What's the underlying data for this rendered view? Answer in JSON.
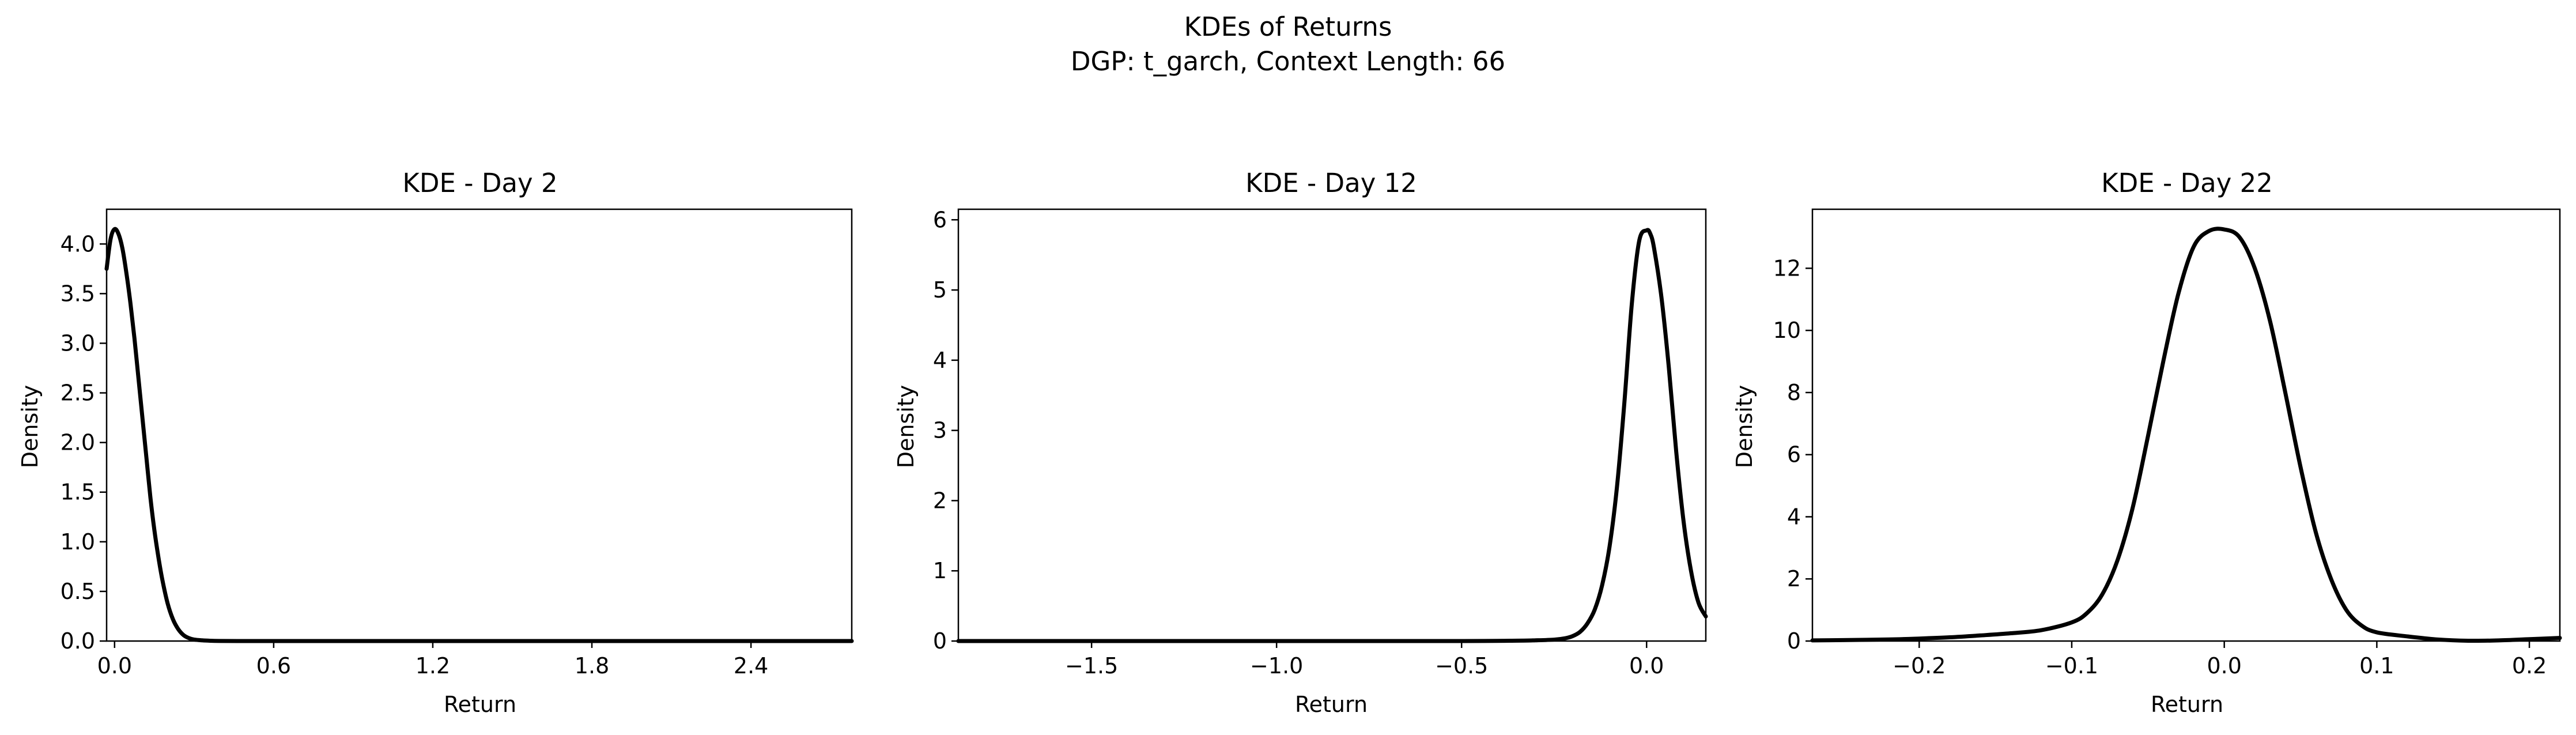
{
  "figure": {
    "title_line1": "KDEs of Returns",
    "title_line2": "DGP: t_garch, Context Length: 66"
  },
  "chart_data": [
    {
      "type": "line",
      "title": "KDE - Day 2",
      "xlabel": "Return",
      "ylabel": "Density",
      "xlim": [
        -0.03,
        2.78
      ],
      "ylim": [
        0,
        4.35
      ],
      "xticks": [
        0.0,
        0.6,
        1.2,
        1.8,
        2.4
      ],
      "xtick_labels": [
        "0.0",
        "0.6",
        "1.2",
        "1.8",
        "2.4"
      ],
      "yticks": [
        0.0,
        0.5,
        1.0,
        1.5,
        2.0,
        2.5,
        3.0,
        3.5,
        4.0
      ],
      "ytick_labels": [
        "0.0",
        "0.5",
        "1.0",
        "1.5",
        "2.0",
        "2.5",
        "3.0",
        "3.5",
        "4.0"
      ],
      "series": [
        {
          "color": "#000000",
          "x": [
            -0.03,
            -0.015,
            0.0,
            0.015,
            0.03,
            0.045,
            0.06,
            0.075,
            0.09,
            0.105,
            0.12,
            0.135,
            0.15,
            0.165,
            0.18,
            0.2,
            0.22,
            0.24,
            0.26,
            0.28,
            0.3,
            0.33,
            0.36,
            0.4,
            0.5,
            0.6,
            1.0,
            1.5,
            2.0,
            2.5,
            2.78
          ],
          "y": [
            3.75,
            4.05,
            4.15,
            4.1,
            3.95,
            3.7,
            3.4,
            3.05,
            2.65,
            2.25,
            1.85,
            1.45,
            1.12,
            0.85,
            0.62,
            0.38,
            0.22,
            0.12,
            0.06,
            0.03,
            0.015,
            0.007,
            0.003,
            0.001,
            0.0,
            0.0,
            0.0,
            0.0,
            0.0,
            0.0,
            0.0
          ]
        }
      ]
    },
    {
      "type": "line",
      "title": "KDE - Day 12",
      "xlabel": "Return",
      "ylabel": "Density",
      "xlim": [
        -1.86,
        0.16
      ],
      "ylim": [
        0,
        6.15
      ],
      "xticks": [
        -1.5,
        -1.0,
        -0.5,
        0.0
      ],
      "xtick_labels": [
        "−1.5",
        "−1.0",
        "−0.5",
        "0.0"
      ],
      "yticks": [
        0,
        1,
        2,
        3,
        4,
        5,
        6
      ],
      "ytick_labels": [
        "0",
        "1",
        "2",
        "3",
        "4",
        "5",
        "6"
      ],
      "series": [
        {
          "color": "#000000",
          "x": [
            -1.86,
            -1.5,
            -1.0,
            -0.5,
            -0.35,
            -0.3,
            -0.25,
            -0.22,
            -0.2,
            -0.18,
            -0.16,
            -0.14,
            -0.12,
            -0.1,
            -0.08,
            -0.06,
            -0.04,
            -0.02,
            0.0,
            0.01,
            0.02,
            0.04,
            0.06,
            0.08,
            0.1,
            0.12,
            0.14,
            0.16
          ],
          "y": [
            0.0,
            0.0,
            0.0,
            0.0,
            0.005,
            0.01,
            0.02,
            0.04,
            0.07,
            0.13,
            0.25,
            0.45,
            0.8,
            1.35,
            2.2,
            3.4,
            4.8,
            5.7,
            5.85,
            5.8,
            5.6,
            4.9,
            3.9,
            2.7,
            1.7,
            1.0,
            0.55,
            0.35
          ]
        }
      ]
    },
    {
      "type": "line",
      "title": "KDE - Day 22",
      "xlabel": "Return",
      "ylabel": "Density",
      "xlim": [
        -0.27,
        0.22
      ],
      "ylim": [
        0,
        13.9
      ],
      "xticks": [
        -0.2,
        -0.1,
        0.0,
        0.1,
        0.2
      ],
      "xtick_labels": [
        "−0.2",
        "−0.1",
        "0.0",
        "0.1",
        "0.2"
      ],
      "yticks": [
        0,
        2,
        4,
        6,
        8,
        10,
        12
      ],
      "ytick_labels": [
        "0",
        "2",
        "4",
        "6",
        "8",
        "10",
        "12"
      ],
      "series": [
        {
          "color": "#000000",
          "x": [
            -0.27,
            -0.25,
            -0.22,
            -0.2,
            -0.18,
            -0.16,
            -0.14,
            -0.12,
            -0.1,
            -0.09,
            -0.08,
            -0.07,
            -0.06,
            -0.05,
            -0.04,
            -0.03,
            -0.02,
            -0.01,
            0.0,
            0.01,
            0.02,
            0.03,
            0.04,
            0.05,
            0.06,
            0.07,
            0.08,
            0.09,
            0.1,
            0.12,
            0.14,
            0.16,
            0.18,
            0.2,
            0.22
          ],
          "y": [
            0.02,
            0.03,
            0.05,
            0.08,
            0.12,
            0.18,
            0.25,
            0.35,
            0.6,
            0.9,
            1.5,
            2.6,
            4.3,
            6.6,
            9.0,
            11.2,
            12.7,
            13.2,
            13.25,
            13.0,
            12.0,
            10.3,
            8.0,
            5.6,
            3.5,
            2.0,
            1.0,
            0.5,
            0.28,
            0.15,
            0.05,
            0.01,
            0.02,
            0.06,
            0.1
          ]
        }
      ]
    }
  ]
}
